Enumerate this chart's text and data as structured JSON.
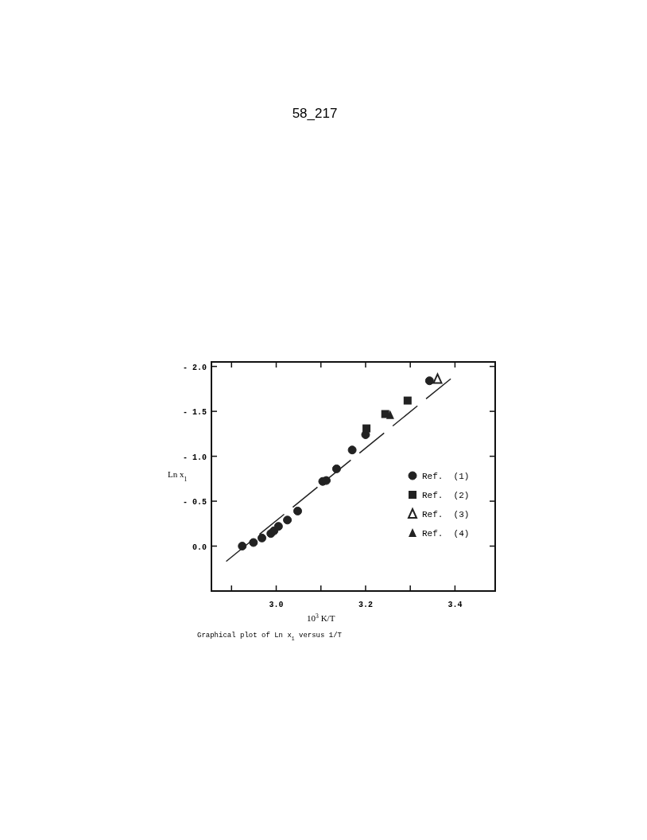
{
  "chart_data": {
    "type": "scatter",
    "title": "58_217",
    "xlabel": "10$^{3}$ K/T",
    "ylabel": "Ln x$_{1}$",
    "annotations": [
      "Graphical plot of Ln x$_{1}$ versus 1/T"
    ],
    "xlim": [
      2.855,
      3.49
    ],
    "ylim": [
      0.5,
      -2.05
    ],
    "xticks": [
      {
        "value": 2.9,
        "label": null
      },
      {
        "value": 3.0,
        "label": "3.0"
      },
      {
        "value": 3.1,
        "label": null
      },
      {
        "value": 3.2,
        "label": "3.2"
      },
      {
        "value": 3.3,
        "label": null
      },
      {
        "value": 3.4,
        "label": "3.4"
      }
    ],
    "yticks": [
      {
        "value": 0,
        "label": "0.0"
      },
      {
        "value": -0.5,
        "label": "- 0.5"
      },
      {
        "value": -1,
        "label": "- 1.0"
      },
      {
        "value": -1.5,
        "label": "- 1.5"
      },
      {
        "value": -2,
        "label": "- 2.0"
      }
    ],
    "grid": false,
    "legend": "right",
    "series": [
      {
        "name": "Ref.  (1)",
        "color": "#222222",
        "marker": "circle",
        "x": [
          2.924,
          2.949,
          2.968,
          2.988,
          2.995,
          3.005,
          3.025,
          3.048,
          3.104,
          3.112,
          3.135,
          3.17,
          3.2,
          3.343
        ],
        "values": [
          0.0,
          -0.04,
          -0.09,
          -0.14,
          -0.17,
          -0.22,
          -0.29,
          -0.39,
          -0.72,
          -0.73,
          -0.86,
          -1.07,
          -1.24,
          -1.84
        ]
      },
      {
        "name": "Ref.  (2)",
        "color": "#222222",
        "marker": "square",
        "x": [
          3.202,
          3.244,
          3.294
        ],
        "values": [
          -1.31,
          -1.47,
          -1.62
        ]
      },
      {
        "name": "Ref.  (3)",
        "color": "#222222",
        "marker": "triangle-open",
        "x": [
          3.361
        ],
        "values": [
          -1.86
        ]
      },
      {
        "name": "Ref.  (4)",
        "color": "#222222",
        "marker": "triangle",
        "x": [
          3.255
        ],
        "values": [
          -1.46
        ]
      },
      {
        "type": "line",
        "color": "#222222",
        "line_style": "dashed",
        "x": [
          2.888,
          3.395
        ],
        "values": [
          0.17,
          -1.88
        ]
      }
    ]
  }
}
